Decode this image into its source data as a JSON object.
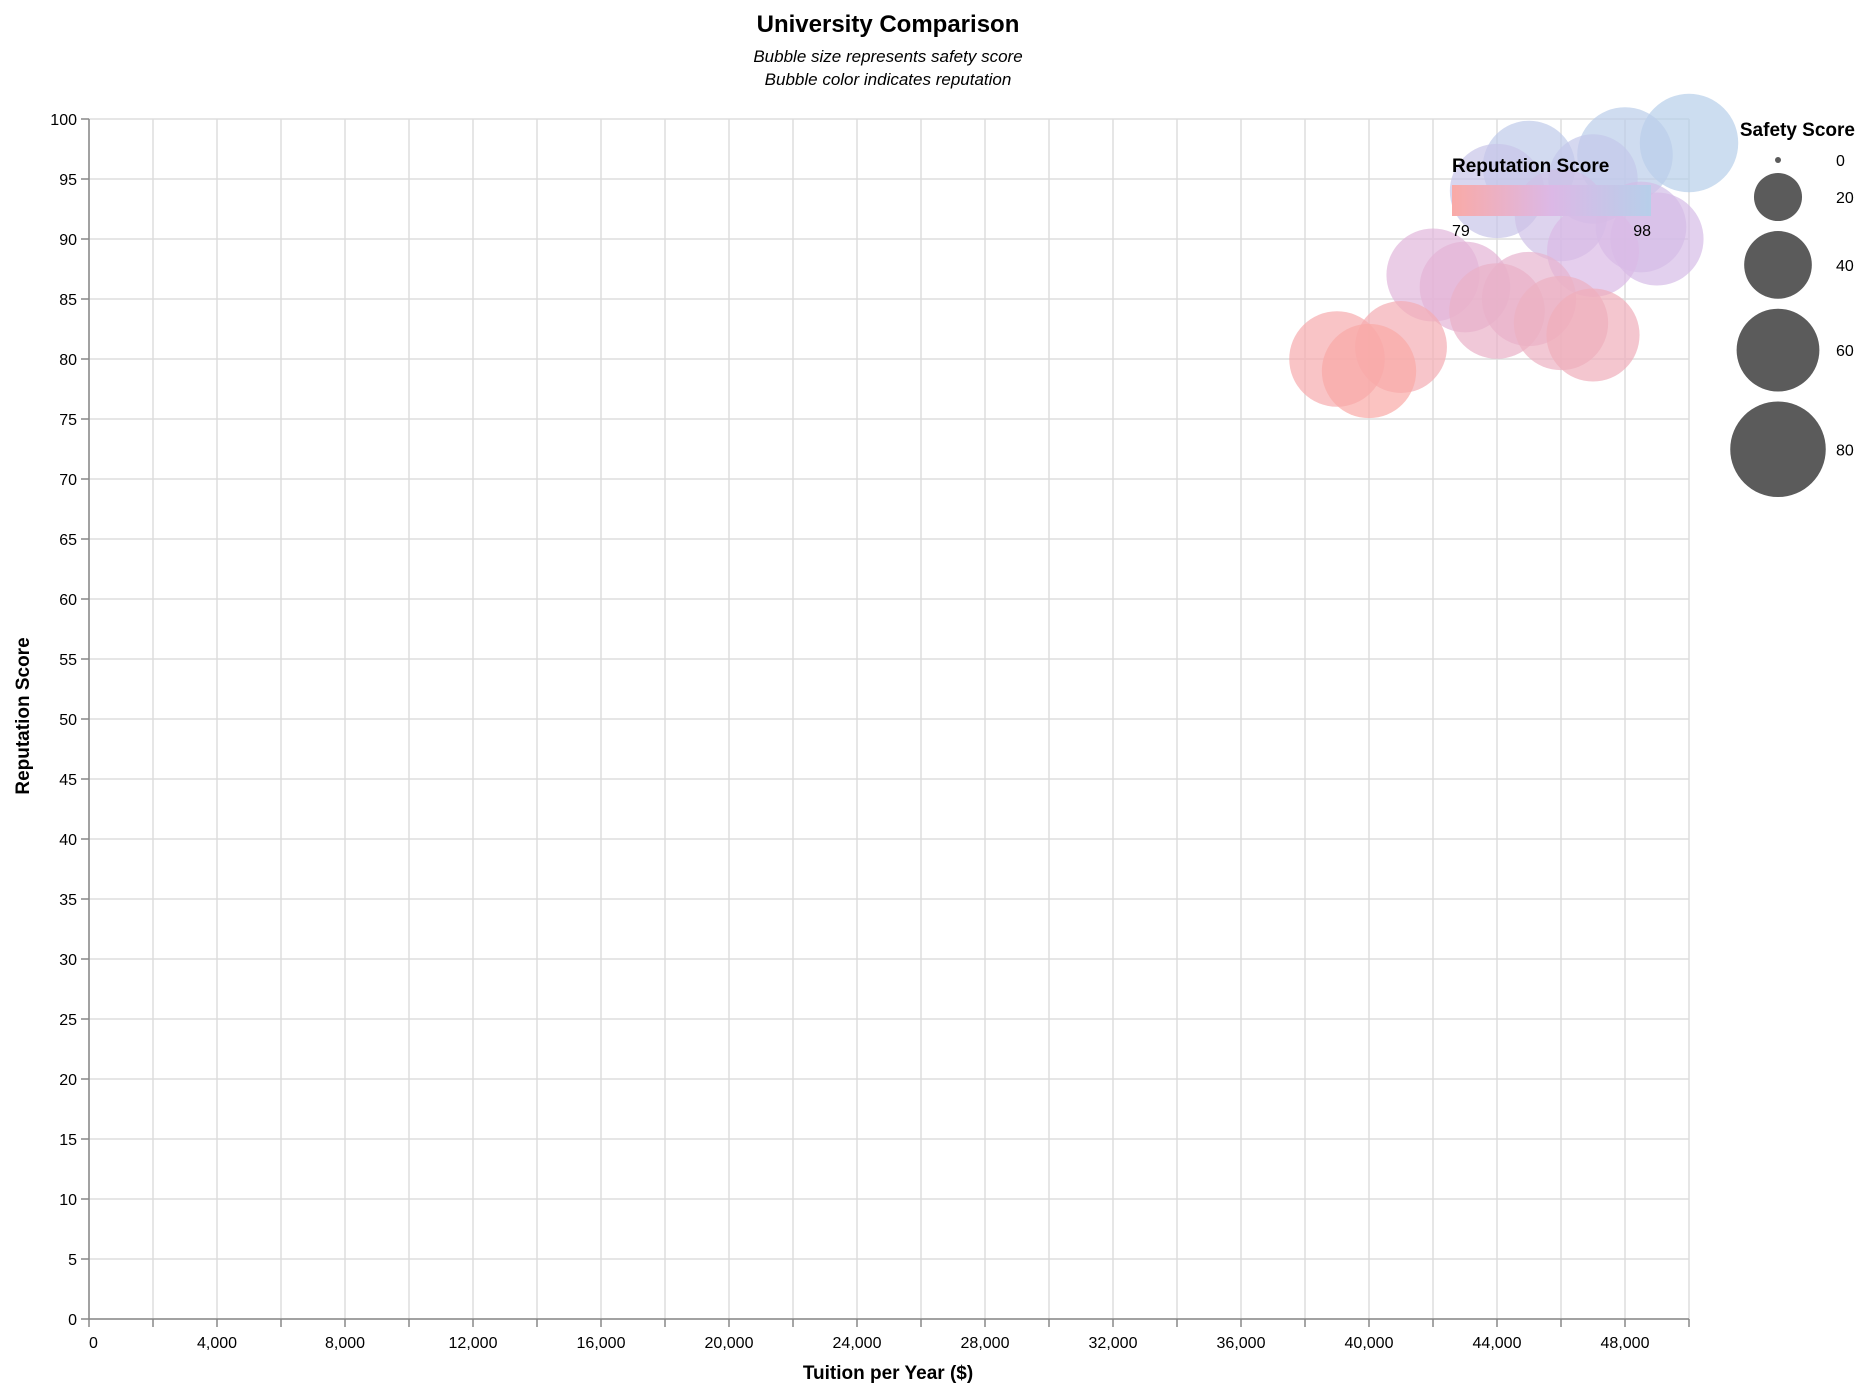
{
  "chart_data": {
    "type": "scatter",
    "title": "University Comparison",
    "subtitle": [
      "Bubble size represents safety score",
      "Bubble color indicates reputation"
    ],
    "xlabel": "Tuition per Year ($)",
    "ylabel": "Reputation Score",
    "xlim": [
      0,
      50000
    ],
    "ylim": [
      0,
      100
    ],
    "x_ticks": [
      0,
      4000,
      8000,
      12000,
      16000,
      20000,
      24000,
      28000,
      32000,
      36000,
      40000,
      44000,
      48000
    ],
    "x_tick_labels": [
      "0",
      "4,000",
      "8,000",
      "12,000",
      "16,000",
      "20,000",
      "24,000",
      "28,000",
      "32,000",
      "36,000",
      "40,000",
      "44,000",
      "48,000"
    ],
    "y_ticks": [
      0,
      5,
      10,
      15,
      20,
      25,
      30,
      35,
      40,
      45,
      50,
      55,
      60,
      65,
      70,
      75,
      80,
      85,
      90,
      95,
      100
    ],
    "grid": true,
    "color_legend": {
      "title": "Reputation Score",
      "min": 79,
      "max": 98,
      "color_low": "#f9aaa7",
      "color_high": "#b7cfea",
      "color_mid": "#dcb8e6",
      "placement": "top-right (inside plot)"
    },
    "size_legend": {
      "title": "Safety Score",
      "values": [
        0,
        20,
        40,
        60,
        80
      ],
      "placement": "right"
    },
    "points": [
      {
        "tuition": 50000,
        "reputation": 98,
        "safety": 85
      },
      {
        "tuition": 48000,
        "reputation": 97,
        "safety": 80
      },
      {
        "tuition": 45000,
        "reputation": 96,
        "safety": 75
      },
      {
        "tuition": 47000,
        "reputation": 95,
        "safety": 70
      },
      {
        "tuition": 44000,
        "reputation": 94,
        "safety": 78
      },
      {
        "tuition": 48500,
        "reputation": 91,
        "safety": 72
      },
      {
        "tuition": 46000,
        "reputation": 92,
        "safety": 75
      },
      {
        "tuition": 49000,
        "reputation": 90,
        "safety": 76
      },
      {
        "tuition": 47000,
        "reputation": 89,
        "safety": 74
      },
      {
        "tuition": 42000,
        "reputation": 87,
        "safety": 76
      },
      {
        "tuition": 43000,
        "reputation": 86,
        "safety": 72
      },
      {
        "tuition": 45000,
        "reputation": 85,
        "safety": 78
      },
      {
        "tuition": 44000,
        "reputation": 84,
        "safety": 80
      },
      {
        "tuition": 46000,
        "reputation": 83,
        "safety": 78
      },
      {
        "tuition": 47000,
        "reputation": 82,
        "safety": 76
      },
      {
        "tuition": 41000,
        "reputation": 81,
        "safety": 74
      },
      {
        "tuition": 39000,
        "reputation": 80,
        "safety": 80
      },
      {
        "tuition": 40000,
        "reputation": 79,
        "safety": 78
      }
    ]
  }
}
